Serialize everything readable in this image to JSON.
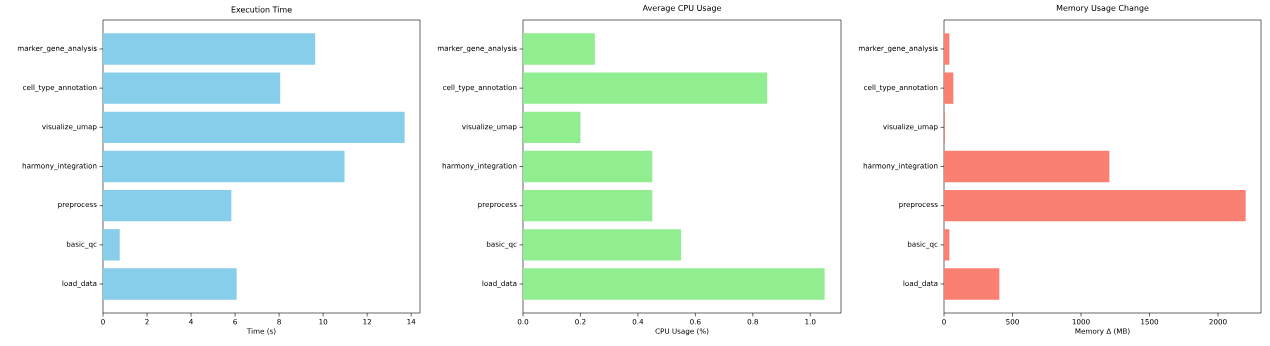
{
  "chart_data": [
    {
      "type": "bar",
      "orientation": "horizontal",
      "title": "Execution Time",
      "xlabel": "Time (s)",
      "categories": [
        "marker_gene_analysis",
        "cell_type_annotation",
        "visualize_umap",
        "harmony_integration",
        "preprocess",
        "basic_qc",
        "load_data"
      ],
      "values": [
        9.64,
        8.05,
        13.7,
        10.97,
        5.83,
        0.76,
        6.07
      ],
      "color": "#87ceeb",
      "xlim": [
        0,
        14.4
      ],
      "xticks": [
        0,
        2,
        4,
        6,
        8,
        10,
        12,
        14
      ]
    },
    {
      "type": "bar",
      "orientation": "horizontal",
      "title": "Average CPU Usage",
      "xlabel": "CPU Usage (%)",
      "categories": [
        "marker_gene_analysis",
        "cell_type_annotation",
        "visualize_umap",
        "harmony_integration",
        "preprocess",
        "basic_qc",
        "load_data"
      ],
      "values": [
        0.25,
        0.85,
        0.2,
        0.45,
        0.45,
        0.55,
        1.05
      ],
      "color": "#90ee90",
      "xlim": [
        0,
        1.107
      ],
      "xticks": [
        {
          "value": 0,
          "label": "0.0"
        },
        0.2,
        0.4,
        0.6,
        0.8,
        {
          "value": 1,
          "label": "1.0"
        }
      ]
    },
    {
      "type": "bar",
      "orientation": "horizontal",
      "title": "Memory Usage Change",
      "xlabel": "Memory Δ (MB)",
      "categories": [
        "marker_gene_analysis",
        "cell_type_annotation",
        "visualize_umap",
        "harmony_integration",
        "preprocess",
        "basic_qc",
        "load_data"
      ],
      "values": [
        39,
        68,
        7,
        1207,
        2202,
        39,
        404
      ],
      "color": "#fa8072",
      "xlim": [
        0,
        2314
      ],
      "xticks": [
        0,
        500,
        1000,
        1500,
        2000
      ]
    }
  ]
}
